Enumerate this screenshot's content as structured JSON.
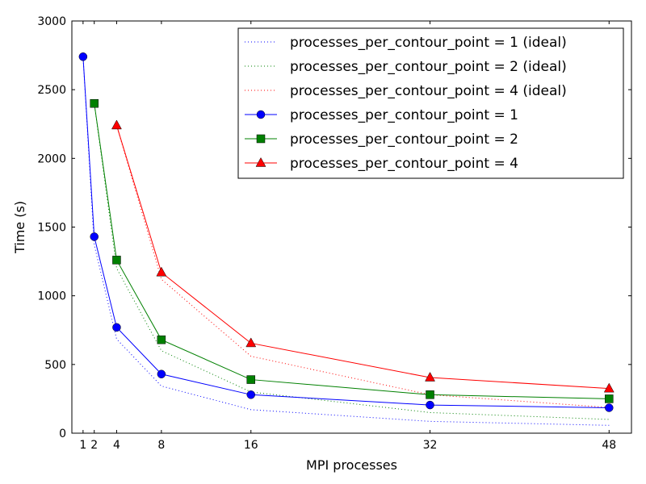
{
  "chart_data": {
    "type": "line",
    "title": "",
    "xlabel": "MPI processes",
    "ylabel": "Time (s)",
    "xlim": [
      0,
      50
    ],
    "ylim": [
      0,
      3000
    ],
    "xticks": [
      1,
      2,
      4,
      8,
      16,
      32,
      48
    ],
    "yticks": [
      0,
      500,
      1000,
      1500,
      2000,
      2500,
      3000
    ],
    "legend_position": "top-right",
    "series": [
      {
        "name": "processes_per_contour_point = 1 (ideal)",
        "style": "dotted",
        "marker": "none",
        "color": "#0000ff",
        "x": [
          1,
          2,
          4,
          8,
          16,
          32,
          48
        ],
        "y": [
          2740,
          1370,
          685,
          343,
          171,
          86,
          57
        ]
      },
      {
        "name": "processes_per_contour_point = 2 (ideal)",
        "style": "dotted",
        "marker": "none",
        "color": "#008000",
        "x": [
          2,
          4,
          8,
          16,
          32,
          48
        ],
        "y": [
          2400,
          1200,
          600,
          300,
          150,
          100
        ]
      },
      {
        "name": "processes_per_contour_point = 4 (ideal)",
        "style": "dotted",
        "marker": "none",
        "color": "#ff0000",
        "x": [
          4,
          8,
          16,
          32,
          48
        ],
        "y": [
          2240,
          1120,
          560,
          280,
          187
        ]
      },
      {
        "name": "processes_per_contour_point = 1",
        "style": "solid",
        "marker": "circle",
        "color": "#0000ff",
        "x": [
          1,
          2,
          4,
          8,
          16,
          32,
          48
        ],
        "y": [
          2740,
          1430,
          770,
          430,
          280,
          205,
          185
        ]
      },
      {
        "name": "processes_per_contour_point = 2",
        "style": "solid",
        "marker": "square",
        "color": "#008000",
        "x": [
          2,
          4,
          8,
          16,
          32,
          48
        ],
        "y": [
          2400,
          1260,
          680,
          390,
          280,
          250
        ]
      },
      {
        "name": "processes_per_contour_point = 4",
        "style": "solid",
        "marker": "triangle",
        "color": "#ff0000",
        "x": [
          4,
          8,
          16,
          32,
          48
        ],
        "y": [
          2240,
          1170,
          655,
          405,
          325
        ]
      }
    ]
  }
}
